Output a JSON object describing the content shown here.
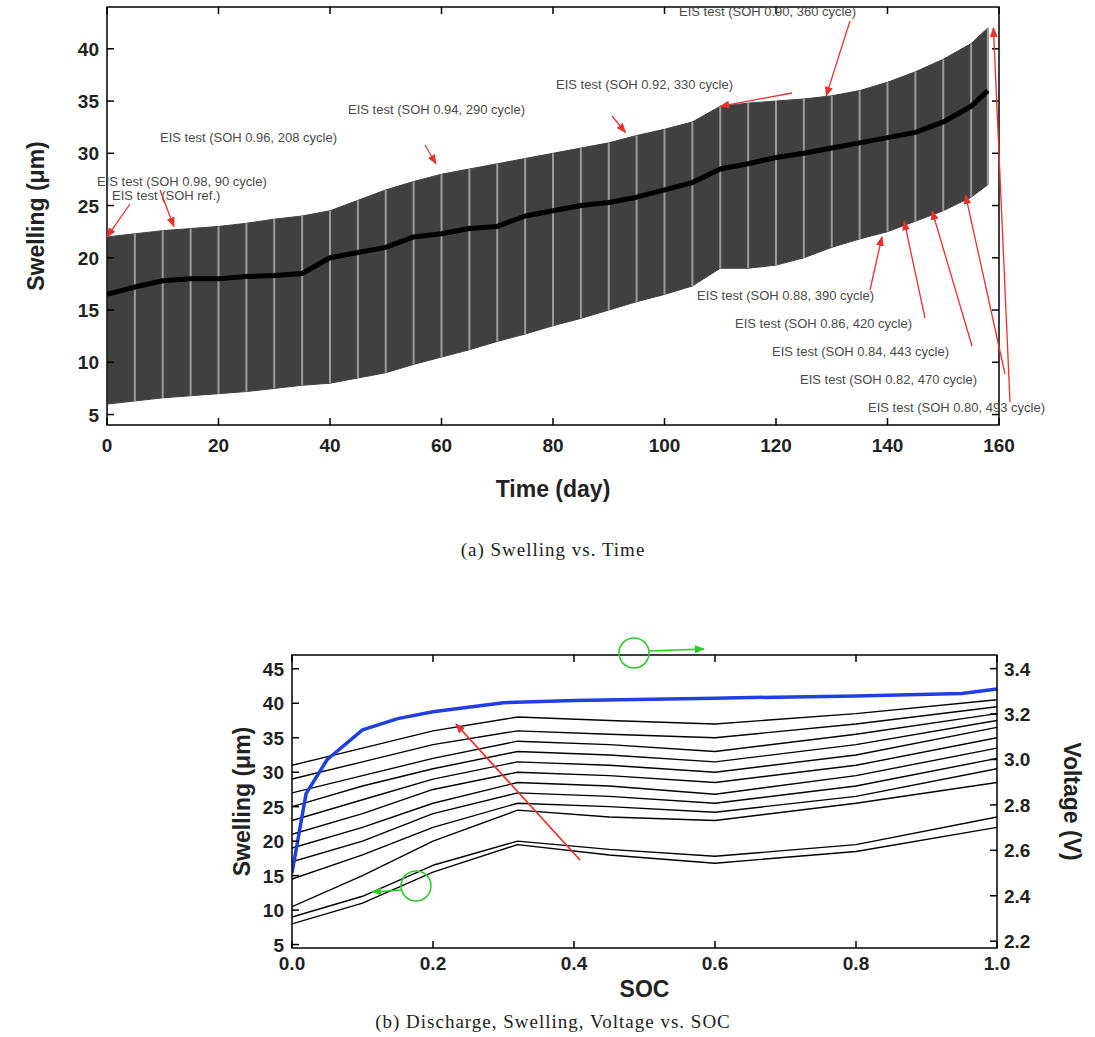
{
  "chart_data": [
    {
      "type": "line",
      "caption": "(a) Swelling vs. Time",
      "x_label": "Time (day)",
      "y_label": "Swelling (μm)",
      "xlim": [
        0,
        160
      ],
      "xticks": [
        0,
        20,
        40,
        60,
        80,
        100,
        120,
        140,
        160
      ],
      "ylim": [
        4,
        44
      ],
      "yticks": [
        5,
        10,
        15,
        20,
        25,
        30,
        35,
        40
      ],
      "x": [
        0,
        5,
        10,
        15,
        20,
        25,
        30,
        35,
        40,
        45,
        50,
        55,
        60,
        65,
        70,
        75,
        80,
        85,
        90,
        95,
        100,
        105,
        110,
        115,
        120,
        125,
        130,
        135,
        140,
        145,
        150,
        155,
        158
      ],
      "series": [
        {
          "type": "band",
          "color": "#404040",
          "values": [
            22,
            22.3,
            22.6,
            22.8,
            23,
            23.3,
            23.7,
            24,
            24.5,
            25.5,
            26.5,
            27.3,
            28,
            28.5,
            29,
            29.5,
            30,
            30.5,
            31,
            31.7,
            32.3,
            33,
            34.5,
            34.8,
            35,
            35.2,
            35.5,
            36,
            36.8,
            37.8,
            39,
            40.5,
            42
          ],
          "lower": [
            6,
            6.3,
            6.6,
            6.8,
            7,
            7.2,
            7.5,
            7.8,
            8,
            8.5,
            9,
            9.8,
            10.5,
            11.2,
            12,
            12.7,
            13.5,
            14.2,
            15,
            15.8,
            16.5,
            17.3,
            19,
            19,
            19.3,
            20,
            21,
            21.8,
            22.5,
            23.5,
            24.5,
            25.8,
            27
          ]
        },
        {
          "type": "line",
          "color": "#000000",
          "values": [
            16.5,
            17.2,
            17.8,
            18,
            18,
            18.2,
            18.3,
            18.5,
            20,
            20.5,
            21,
            22,
            22.3,
            22.8,
            23,
            24,
            24.5,
            25,
            25.3,
            25.8,
            26.5,
            27.2,
            28.5,
            29,
            29.6,
            30,
            30.5,
            31,
            31.5,
            32,
            33,
            34.5,
            36
          ]
        }
      ],
      "annotations": [
        {
          "text": "EIS test (SOH ref.)",
          "x": 0,
          "y": 22
        },
        {
          "text": "EIS test (SOH 0.98, 90 cycle)",
          "x": 12,
          "y": 23
        },
        {
          "text": "EIS test (SOH 0.96, 208 cycle)",
          "x": 59,
          "y": 29
        },
        {
          "text": "EIS test (SOH 0.94, 290 cycle)",
          "x": 93,
          "y": 32
        },
        {
          "text": "EIS test (SOH 0.92, 330 cycle)",
          "x": 110,
          "y": 34.5
        },
        {
          "text": "EIS test (SOH 0.90, 360 cycle)",
          "x": 129,
          "y": 35.5
        },
        {
          "text": "EIS test (SOH 0.88, 390 cycle)",
          "x": 139,
          "y": 22
        },
        {
          "text": "EIS test (SOH 0.86, 420 cycle)",
          "x": 143,
          "y": 23.5
        },
        {
          "text": "EIS test (SOH 0.84, 443 cycle)",
          "x": 148,
          "y": 24.5
        },
        {
          "text": "EIS test (SOH 0.82, 470 cycle)",
          "x": 154,
          "y": 26
        },
        {
          "text": "EIS test (SOH 0.80, 493 cycle)",
          "x": 159,
          "y": 42
        }
      ]
    },
    {
      "type": "line",
      "caption": "(b) Discharge, Swelling, Voltage vs. SOC",
      "x_label": "SOC",
      "y_label": "Swelling (μm)",
      "y2_label": "Voltage (V)",
      "xlim": [
        0,
        1
      ],
      "xticks": [
        {
          "value": 0,
          "label": "0.0"
        },
        0.2,
        0.4,
        0.6,
        0.8,
        {
          "value": 1,
          "label": "1.0"
        }
      ],
      "ylim": [
        4.5,
        47
      ],
      "yticks": [
        5,
        10,
        15,
        20,
        25,
        30,
        35,
        40,
        45
      ],
      "y2lim": [
        2.17,
        3.46
      ],
      "y2ticks": [
        2.2,
        2.4,
        2.6,
        2.8,
        {
          "value": 3,
          "label": "3.0"
        },
        3.2,
        3.4
      ],
      "series": [
        {
          "color": "#000000",
          "x": [
            0,
            0.1,
            0.2,
            0.32,
            0.45,
            0.6,
            0.8,
            1.0
          ],
          "values": [
            8,
            11,
            15.5,
            19.5,
            18,
            16.8,
            18.5,
            22
          ]
        },
        {
          "color": "#000000",
          "x": [
            0,
            0.1,
            0.2,
            0.32,
            0.45,
            0.6,
            0.8,
            1.0
          ],
          "values": [
            9,
            12,
            16.5,
            20,
            18.8,
            17.8,
            19.5,
            23.5
          ]
        },
        {
          "color": "#000000",
          "x": [
            0,
            0.1,
            0.2,
            0.32,
            0.45,
            0.6,
            0.8,
            1.0
          ],
          "values": [
            10.5,
            15,
            20,
            24.5,
            23.5,
            23,
            25.5,
            28.5
          ]
        },
        {
          "color": "#000000",
          "x": [
            0,
            0.1,
            0.2,
            0.32,
            0.45,
            0.6,
            0.8,
            1.0
          ],
          "values": [
            14.5,
            18,
            22,
            25.5,
            25,
            24.2,
            26.5,
            30.5
          ]
        },
        {
          "color": "#000000",
          "x": [
            0,
            0.1,
            0.2,
            0.32,
            0.45,
            0.6,
            0.8,
            1.0
          ],
          "values": [
            17,
            20,
            24,
            27,
            26.5,
            25.5,
            28,
            32
          ]
        },
        {
          "color": "#000000",
          "x": [
            0,
            0.1,
            0.2,
            0.32,
            0.45,
            0.6,
            0.8,
            1.0
          ],
          "values": [
            19,
            22,
            25.5,
            28.5,
            28,
            26.8,
            29.5,
            33.5
          ]
        },
        {
          "color": "#000000",
          "x": [
            0,
            0.1,
            0.2,
            0.32,
            0.45,
            0.6,
            0.8,
            1.0
          ],
          "values": [
            21,
            24,
            27.5,
            30,
            29.5,
            28.5,
            31,
            35
          ]
        },
        {
          "color": "#000000",
          "x": [
            0,
            0.1,
            0.2,
            0.32,
            0.45,
            0.6,
            0.8,
            1.0
          ],
          "values": [
            23,
            26,
            29,
            31.5,
            31,
            30,
            32.5,
            36.5
          ]
        },
        {
          "color": "#000000",
          "x": [
            0,
            0.1,
            0.2,
            0.32,
            0.45,
            0.6,
            0.8,
            1.0
          ],
          "values": [
            25,
            28,
            30.5,
            33,
            32.5,
            31.5,
            34,
            37.5
          ]
        },
        {
          "color": "#000000",
          "x": [
            0,
            0.1,
            0.2,
            0.32,
            0.45,
            0.6,
            0.8,
            1.0
          ],
          "values": [
            27,
            29.5,
            32,
            34.5,
            34,
            33,
            35.5,
            38.5
          ]
        },
        {
          "color": "#000000",
          "x": [
            0,
            0.1,
            0.2,
            0.32,
            0.45,
            0.6,
            0.8,
            1.0
          ],
          "values": [
            29,
            31.5,
            34,
            36,
            35.5,
            35,
            37,
            39.5
          ]
        },
        {
          "color": "#000000",
          "x": [
            0,
            0.1,
            0.2,
            0.32,
            0.45,
            0.6,
            0.8,
            1.0
          ],
          "values": [
            31,
            33.5,
            36,
            38,
            37.5,
            37,
            38.5,
            40.5
          ]
        },
        {
          "color": "#1f3fe0",
          "axis": "y2",
          "x": [
            0,
            0.02,
            0.05,
            0.1,
            0.15,
            0.2,
            0.3,
            0.4,
            0.6,
            0.8,
            0.95,
            1.0
          ],
          "values": [
            2.5,
            2.85,
            3.0,
            3.13,
            3.18,
            3.21,
            3.25,
            3.26,
            3.27,
            3.28,
            3.29,
            3.31
          ]
        }
      ]
    }
  ]
}
